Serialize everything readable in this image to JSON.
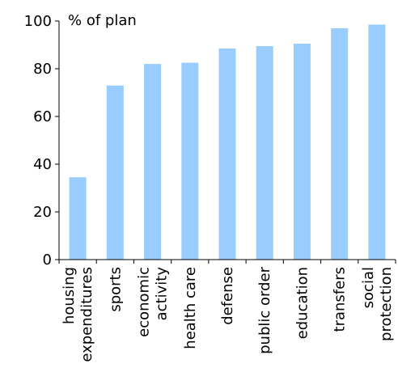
{
  "chart_data": {
    "type": "bar",
    "unit_label": "% of plan",
    "categories": [
      [
        "housing",
        "expenditures"
      ],
      [
        "sports"
      ],
      [
        "economic",
        "activity"
      ],
      [
        "health care"
      ],
      [
        "defense"
      ],
      [
        "public order"
      ],
      [
        "education"
      ],
      [
        "transfers"
      ],
      [
        "social",
        "protection"
      ]
    ],
    "values": [
      34.5,
      73,
      82,
      82.5,
      88.5,
      89.5,
      90.5,
      97,
      98.5
    ],
    "ylim": [
      0,
      100
    ],
    "yticks": [
      0,
      20,
      40,
      60,
      80,
      100
    ],
    "grid": false,
    "legend": "none",
    "bar_color": "#99CCFF",
    "axis_color": "#000000"
  }
}
